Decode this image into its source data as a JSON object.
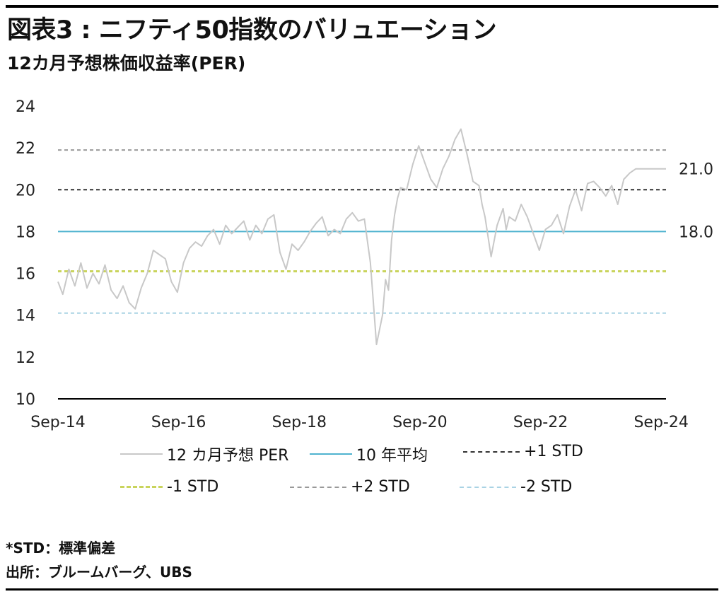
{
  "header": {
    "title": "図表3 : ニフティ50指数のバリュエーション",
    "subtitle": "12カ月予想株価収益率(PER)"
  },
  "legend": [
    {
      "key": "per",
      "label": "12 カ月予想 PER",
      "color": "#c8c8c8",
      "style": "solid"
    },
    {
      "key": "avg",
      "label": "10 年平均",
      "color": "#4fb3cf",
      "style": "solid"
    },
    {
      "key": "p1",
      "label": "+1 STD",
      "color": "#333333",
      "style": "dashed"
    },
    {
      "key": "m1",
      "label": "-1 STD",
      "color": "#c9d45c",
      "style": "dashed"
    },
    {
      "key": "p2",
      "label": "+2 STD",
      "color": "#999999",
      "style": "dashed"
    },
    {
      "key": "m2",
      "label": "-2 STD",
      "color": "#a9d3e4",
      "style": "dashed"
    }
  ],
  "notes": {
    "std_note": "*STD：標準偏差",
    "source": "出所：ブルームバーグ、UBS"
  },
  "chart_data": {
    "type": "line",
    "ylim": [
      10,
      24
    ],
    "yticks": [
      10,
      12,
      14,
      16,
      18,
      20,
      22,
      24
    ],
    "xlim": [
      2014.67,
      2024.75
    ],
    "xticks": [
      {
        "x": 2014.67,
        "label": "Sep-14"
      },
      {
        "x": 2016.67,
        "label": "Sep-16"
      },
      {
        "x": 2018.67,
        "label": "Sep-18"
      },
      {
        "x": 2020.67,
        "label": "Sep-20"
      },
      {
        "x": 2022.67,
        "label": "Sep-22"
      },
      {
        "x": 2024.67,
        "label": "Sep-24"
      }
    ],
    "reference_lines": [
      {
        "key": "avg",
        "value": 18.0,
        "color": "#4fb3cf",
        "style": "solid"
      },
      {
        "key": "p1",
        "value": 20.0,
        "color": "#333333",
        "style": "dashed"
      },
      {
        "key": "m1",
        "value": 16.1,
        "color": "#c9d45c",
        "style": "dashed"
      },
      {
        "key": "p2",
        "value": 21.9,
        "color": "#999999",
        "style": "dashed"
      },
      {
        "key": "m2",
        "value": 14.1,
        "color": "#a9d3e4",
        "style": "dashed"
      }
    ],
    "callouts": [
      {
        "value": 21.0,
        "label": "21.0"
      },
      {
        "value": 18.0,
        "label": "18.0"
      }
    ],
    "series": [
      {
        "key": "per",
        "color": "#c8c8c8",
        "x": [
          2014.67,
          2014.75,
          2014.85,
          2014.95,
          2015.05,
          2015.15,
          2015.25,
          2015.35,
          2015.45,
          2015.55,
          2015.65,
          2015.75,
          2015.85,
          2015.95,
          2016.05,
          2016.15,
          2016.25,
          2016.35,
          2016.45,
          2016.55,
          2016.65,
          2016.75,
          2016.85,
          2016.95,
          2017.05,
          2017.15,
          2017.25,
          2017.35,
          2017.45,
          2017.55,
          2017.65,
          2017.75,
          2017.85,
          2017.95,
          2018.05,
          2018.15,
          2018.25,
          2018.35,
          2018.45,
          2018.55,
          2018.65,
          2018.75,
          2018.85,
          2018.95,
          2019.05,
          2019.15,
          2019.25,
          2019.35,
          2019.45,
          2019.55,
          2019.65,
          2019.75,
          2019.85,
          2019.95,
          2020.05,
          2020.1,
          2020.15,
          2020.2,
          2020.25,
          2020.3,
          2020.35,
          2020.45,
          2020.55,
          2020.65,
          2020.75,
          2020.85,
          2020.95,
          2021.05,
          2021.15,
          2021.25,
          2021.35,
          2021.45,
          2021.55,
          2021.65,
          2021.7,
          2021.75,
          2021.85,
          2021.95,
          2022.05,
          2022.1,
          2022.15,
          2022.25,
          2022.35,
          2022.45,
          2022.55,
          2022.65,
          2022.75,
          2022.85,
          2022.95,
          2023.05,
          2023.15,
          2023.25,
          2023.35,
          2023.45,
          2023.55,
          2023.65,
          2023.75,
          2023.85,
          2023.95,
          2024.05,
          2024.15,
          2024.25,
          2024.35,
          2024.45,
          2024.55,
          2024.65,
          2024.75
        ],
        "y": [
          15.6,
          15.0,
          16.2,
          15.4,
          16.5,
          15.3,
          16.0,
          15.5,
          16.4,
          15.2,
          14.8,
          15.4,
          14.6,
          14.3,
          15.3,
          16.0,
          17.1,
          16.9,
          16.7,
          15.6,
          15.1,
          16.5,
          17.2,
          17.5,
          17.3,
          17.8,
          18.1,
          17.4,
          18.3,
          17.9,
          18.2,
          18.5,
          17.6,
          18.3,
          17.9,
          18.6,
          18.8,
          17.0,
          16.2,
          17.4,
          17.1,
          17.5,
          18.0,
          18.4,
          18.7,
          17.8,
          18.1,
          17.9,
          18.6,
          18.9,
          18.5,
          18.6,
          16.5,
          12.6,
          14.0,
          15.7,
          15.2,
          17.6,
          18.8,
          19.6,
          20.1,
          20.0,
          21.2,
          22.1,
          21.3,
          20.5,
          20.1,
          21.0,
          21.6,
          22.4,
          22.9,
          21.7,
          20.4,
          20.2,
          19.3,
          18.7,
          16.8,
          18.3,
          19.1,
          18.1,
          18.7,
          18.5,
          19.3,
          18.7,
          17.9,
          17.1,
          18.1,
          18.3,
          18.8,
          17.9,
          19.2,
          20.0,
          19.0,
          20.3,
          20.4,
          20.1,
          19.7,
          20.2,
          19.3,
          20.5,
          20.8,
          21.0,
          21.0,
          21.0,
          21.0,
          21.0,
          21.0
        ]
      }
    ]
  }
}
